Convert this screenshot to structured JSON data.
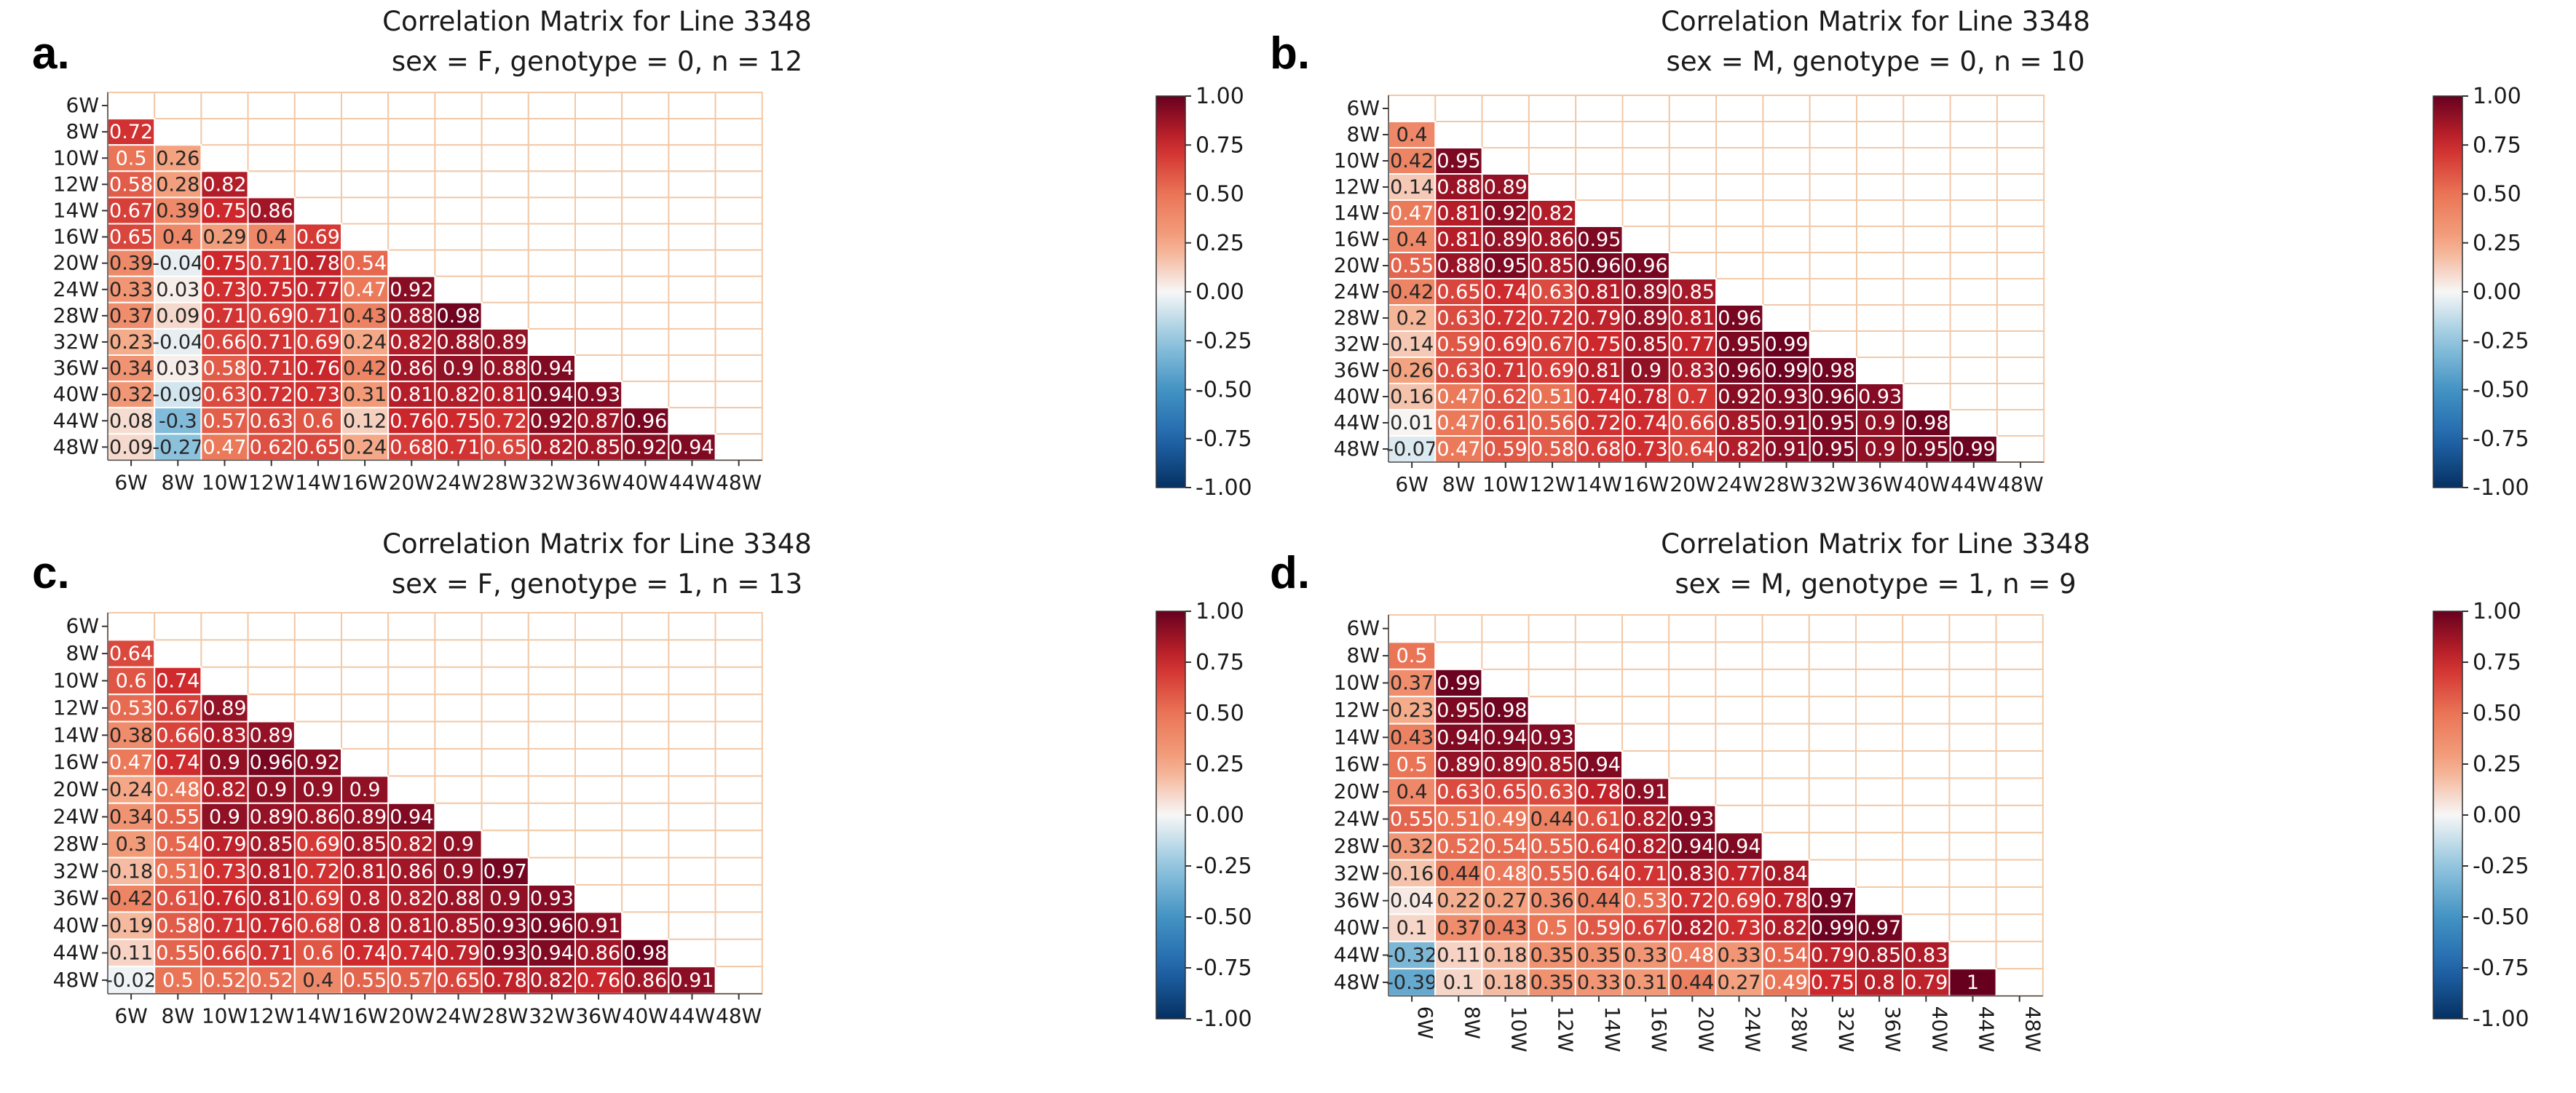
{
  "figure": {
    "labels": [
      "6W",
      "8W",
      "10W",
      "12W",
      "14W",
      "16W",
      "20W",
      "24W",
      "28W",
      "32W",
      "36W",
      "40W",
      "44W",
      "48W"
    ]
  },
  "chart_data": [
    {
      "type": "heatmap",
      "panel_label": "a.",
      "title": "Correlation Matrix for Line 3348",
      "subtitle": "sex = F, genotype = 0, n = 12",
      "x_tick_rotation": 0,
      "colorbar": {
        "ticks": [
          "1.00",
          "0.75",
          "0.50",
          "0.25",
          "0.00",
          "-0.25",
          "-0.50",
          "-0.75",
          "-1.00"
        ],
        "range": [
          -1,
          1
        ],
        "colormap": "RdBu_r"
      },
      "rows": [
        [
          0.72
        ],
        [
          0.5,
          0.26
        ],
        [
          0.58,
          0.28,
          0.82
        ],
        [
          0.67,
          0.39,
          0.75,
          0.86
        ],
        [
          0.65,
          0.4,
          0.29,
          0.4,
          0.69
        ],
        [
          0.39,
          -0.04,
          0.75,
          0.71,
          0.78,
          0.54
        ],
        [
          0.33,
          0.03,
          0.73,
          0.75,
          0.77,
          0.47,
          0.92
        ],
        [
          0.37,
          0.09,
          0.71,
          0.69,
          0.71,
          0.43,
          0.88,
          0.98
        ],
        [
          0.23,
          -0.04,
          0.66,
          0.71,
          0.69,
          0.24,
          0.82,
          0.88,
          0.89
        ],
        [
          0.34,
          0.03,
          0.58,
          0.71,
          0.76,
          0.42,
          0.86,
          0.9,
          0.88,
          0.94
        ],
        [
          0.32,
          -0.09,
          0.63,
          0.72,
          0.73,
          0.31,
          0.81,
          0.82,
          0.81,
          0.94,
          0.93
        ],
        [
          0.08,
          -0.3,
          0.57,
          0.63,
          0.6,
          0.12,
          0.76,
          0.75,
          0.72,
          0.92,
          0.87,
          0.96
        ],
        [
          0.09,
          -0.27,
          0.47,
          0.62,
          0.65,
          0.24,
          0.68,
          0.71,
          0.65,
          0.82,
          0.85,
          0.92,
          0.94
        ]
      ]
    },
    {
      "type": "heatmap",
      "panel_label": "b.",
      "title": "Correlation Matrix for Line 3348",
      "subtitle": "sex = M, genotype = 0, n = 10",
      "x_tick_rotation": 0,
      "colorbar": {
        "ticks": [
          "1.00",
          "0.75",
          "0.50",
          "0.25",
          "0.00",
          "-0.25",
          "-0.50",
          "-0.75",
          "-1.00"
        ],
        "range": [
          -1,
          1
        ],
        "colormap": "RdBu_r"
      },
      "rows": [
        [
          0.4
        ],
        [
          0.42,
          0.95
        ],
        [
          0.14,
          0.88,
          0.89
        ],
        [
          0.47,
          0.81,
          0.92,
          0.82
        ],
        [
          0.4,
          0.81,
          0.89,
          0.86,
          0.95
        ],
        [
          0.55,
          0.88,
          0.95,
          0.85,
          0.96,
          0.96
        ],
        [
          0.42,
          0.65,
          0.74,
          0.63,
          0.81,
          0.89,
          0.85
        ],
        [
          0.2,
          0.63,
          0.72,
          0.72,
          0.79,
          0.89,
          0.81,
          0.96
        ],
        [
          0.14,
          0.59,
          0.69,
          0.67,
          0.75,
          0.85,
          0.77,
          0.95,
          0.99
        ],
        [
          0.26,
          0.63,
          0.71,
          0.69,
          0.81,
          0.9,
          0.83,
          0.96,
          0.99,
          0.98
        ],
        [
          0.16,
          0.47,
          0.62,
          0.51,
          0.74,
          0.78,
          0.7,
          0.92,
          0.93,
          0.96,
          0.93
        ],
        [
          0.01,
          0.47,
          0.61,
          0.56,
          0.72,
          0.74,
          0.66,
          0.85,
          0.91,
          0.95,
          0.9,
          0.98
        ],
        [
          -0.07,
          0.47,
          0.59,
          0.58,
          0.68,
          0.73,
          0.64,
          0.82,
          0.91,
          0.95,
          0.9,
          0.95,
          0.99
        ]
      ]
    },
    {
      "type": "heatmap",
      "panel_label": "c.",
      "title": "Correlation Matrix for Line 3348",
      "subtitle": "sex = F, genotype = 1, n = 13",
      "x_tick_rotation": 0,
      "colorbar": {
        "ticks": [
          "1.00",
          "0.75",
          "0.50",
          "0.25",
          "0.00",
          "-0.25",
          "-0.50",
          "-0.75",
          "-1.00"
        ],
        "range": [
          -1,
          1
        ],
        "colormap": "RdBu_r"
      },
      "rows": [
        [
          0.64
        ],
        [
          0.6,
          0.74
        ],
        [
          0.53,
          0.67,
          0.89
        ],
        [
          0.38,
          0.66,
          0.83,
          0.89
        ],
        [
          0.47,
          0.74,
          0.9,
          0.96,
          0.92
        ],
        [
          0.24,
          0.48,
          0.82,
          0.9,
          0.9,
          0.9
        ],
        [
          0.34,
          0.55,
          0.9,
          0.89,
          0.86,
          0.89,
          0.94
        ],
        [
          0.3,
          0.54,
          0.79,
          0.85,
          0.69,
          0.85,
          0.82,
          0.9
        ],
        [
          0.18,
          0.51,
          0.73,
          0.81,
          0.72,
          0.81,
          0.86,
          0.9,
          0.97
        ],
        [
          0.42,
          0.61,
          0.76,
          0.81,
          0.69,
          0.8,
          0.82,
          0.88,
          0.9,
          0.93
        ],
        [
          0.19,
          0.58,
          0.71,
          0.76,
          0.68,
          0.8,
          0.81,
          0.85,
          0.93,
          0.96,
          0.91
        ],
        [
          0.11,
          0.55,
          0.66,
          0.71,
          0.6,
          0.74,
          0.74,
          0.79,
          0.93,
          0.94,
          0.86,
          0.98
        ],
        [
          -0.02,
          0.5,
          0.52,
          0.52,
          0.4,
          0.55,
          0.57,
          0.65,
          0.78,
          0.82,
          0.76,
          0.86,
          0.91
        ]
      ]
    },
    {
      "type": "heatmap",
      "panel_label": "d.",
      "title": "Correlation Matrix for Line 3348",
      "subtitle": "sex = M, genotype = 1, n = 9",
      "x_tick_rotation": 90,
      "colorbar": {
        "ticks": [
          "1.00",
          "0.75",
          "0.50",
          "0.25",
          "0.00",
          "-0.25",
          "-0.50",
          "-0.75",
          "-1.00"
        ],
        "range": [
          -1,
          1
        ],
        "colormap": "RdBu_r"
      },
      "rows": [
        [
          0.5
        ],
        [
          0.37,
          0.99
        ],
        [
          0.23,
          0.95,
          0.98
        ],
        [
          0.43,
          0.94,
          0.94,
          0.93
        ],
        [
          0.5,
          0.89,
          0.89,
          0.85,
          0.94
        ],
        [
          0.4,
          0.63,
          0.65,
          0.63,
          0.78,
          0.91
        ],
        [
          0.55,
          0.51,
          0.49,
          0.44,
          0.61,
          0.82,
          0.93
        ],
        [
          0.32,
          0.52,
          0.54,
          0.55,
          0.64,
          0.82,
          0.94,
          0.94
        ],
        [
          0.16,
          0.44,
          0.48,
          0.55,
          0.64,
          0.71,
          0.83,
          0.77,
          0.84
        ],
        [
          0.04,
          0.22,
          0.27,
          0.36,
          0.44,
          0.53,
          0.72,
          0.69,
          0.78,
          0.97
        ],
        [
          0.1,
          0.37,
          0.43,
          0.5,
          0.59,
          0.67,
          0.82,
          0.73,
          0.82,
          0.99,
          0.97
        ],
        [
          -0.32,
          0.11,
          0.18,
          0.35,
          0.35,
          0.33,
          0.48,
          0.33,
          0.54,
          0.79,
          0.85,
          0.83
        ],
        [
          -0.39,
          0.1,
          0.18,
          0.35,
          0.33,
          0.31,
          0.44,
          0.27,
          0.49,
          0.75,
          0.8,
          0.79,
          1
        ]
      ]
    }
  ]
}
